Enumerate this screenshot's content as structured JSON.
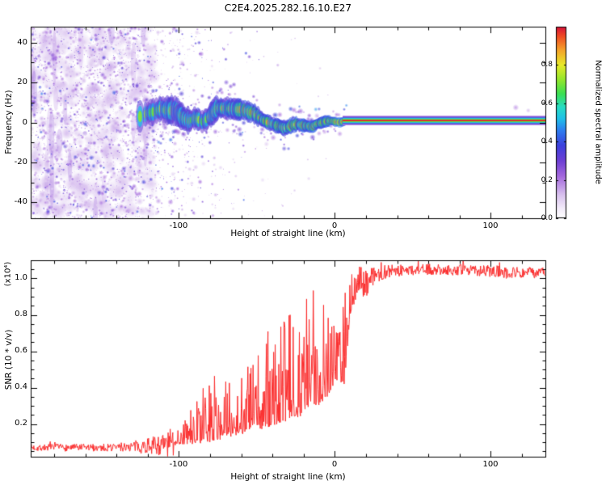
{
  "figure": {
    "title": "C2E4.2025.282.16.10.E27",
    "background": "#ffffff"
  },
  "chart_data": [
    {
      "type": "heatmap",
      "name": "spectral-waterfall",
      "title": "C2E4.2025.282.16.10.E27",
      "xlabel": "Height of straight line (km)",
      "ylabel": "Frequency (Hz)",
      "xlim": [
        -195,
        135
      ],
      "ylim": [
        -48,
        48
      ],
      "xticks": [
        -100,
        0,
        100
      ],
      "xtick_labels": [
        "-100",
        "0",
        "100"
      ],
      "yticks": [
        40,
        20,
        0,
        -20,
        -40
      ],
      "ytick_labels": [
        "40",
        "20",
        "0",
        "-20",
        "-40"
      ],
      "grid": false,
      "colorbar": {
        "label": "Normalized spectral amplitude",
        "range": [
          0,
          1
        ],
        "ticks": [
          0.0,
          0.2,
          0.4,
          0.6,
          0.8
        ],
        "tick_labels": [
          "0.0",
          "0.2",
          "0.4",
          "0.6",
          "0.8"
        ],
        "colormap_stops": [
          [
            0.0,
            "#ffffff"
          ],
          [
            0.05,
            "#f3ecfa"
          ],
          [
            0.12,
            "#d9c2ee"
          ],
          [
            0.22,
            "#a468dd"
          ],
          [
            0.3,
            "#6d3fd4"
          ],
          [
            0.38,
            "#3c40dd"
          ],
          [
            0.46,
            "#2e7ff0"
          ],
          [
            0.52,
            "#1fc0e8"
          ],
          [
            0.58,
            "#27dcc4"
          ],
          [
            0.65,
            "#3cdf52"
          ],
          [
            0.72,
            "#8fe62e"
          ],
          [
            0.8,
            "#e8ea28"
          ],
          [
            0.88,
            "#f5a02a"
          ],
          [
            0.95,
            "#ef4b23"
          ],
          [
            1.0,
            "#d6103a"
          ]
        ]
      },
      "features": {
        "noise_field": {
          "x_range": [
            -195,
            -25
          ],
          "dense_until": -128,
          "amplitude_range": [
            0.05,
            0.45
          ],
          "description": "Diffuse purple speckle noise over all frequencies at low heights, thinning out above -125 km"
        },
        "echo_band": {
          "x_range": [
            -127,
            8
          ],
          "center_freq_hz": 2,
          "halfwidth_hz": [
            7,
            2
          ],
          "amplitude": [
            0.65,
            0.95
          ],
          "description": "Meandering cyan/green echo trace near 0 Hz that narrows and strengthens with height"
        },
        "carrier_line": {
          "x_range": [
            5,
            135
          ],
          "center_freq_hz": 1,
          "halfwidth_hz": 1.9,
          "amplitude": 1.0,
          "description": "Narrow saturated red/green horizontal line near 0 Hz above 5 km"
        }
      }
    },
    {
      "type": "line",
      "name": "snr-profile",
      "xlabel": "Height of straight line (km)",
      "ylabel": "SNR (10 * v/v)",
      "scale_label": "(x10⁴)",
      "xlim": [
        -195,
        135
      ],
      "ylim": [
        0.02,
        1.1
      ],
      "xticks": [
        -100,
        0,
        100
      ],
      "xtick_labels": [
        "-100",
        "0",
        "100"
      ],
      "yticks": [
        0.2,
        0.4,
        0.6,
        0.8,
        1.0
      ],
      "ytick_labels": [
        "0.2",
        "0.4",
        "0.6",
        "0.8",
        "1.0"
      ],
      "line_color": "#fb2e2e",
      "envelope": {
        "x": [
          -195,
          -150,
          -130,
          -110,
          -100,
          -90,
          -80,
          -70,
          -60,
          -50,
          -40,
          -30,
          -20,
          -12,
          -6,
          -2,
          2,
          6,
          10,
          14,
          18,
          25,
          35,
          60,
          90,
          110,
          135
        ],
        "base": [
          0.07,
          0.07,
          0.075,
          0.085,
          0.09,
          0.1,
          0.11,
          0.13,
          0.15,
          0.17,
          0.19,
          0.22,
          0.26,
          0.3,
          0.34,
          0.4,
          0.44,
          0.42,
          0.8,
          0.9,
          0.97,
          1.02,
          1.04,
          1.05,
          1.045,
          1.035,
          1.03
        ],
        "spike": [
          0.02,
          0.02,
          0.03,
          0.06,
          0.12,
          0.22,
          0.38,
          0.3,
          0.42,
          0.45,
          0.55,
          0.6,
          0.65,
          0.72,
          0.72,
          0.66,
          0.63,
          0.62,
          0.27,
          0.17,
          0.1,
          0.05,
          0.035,
          0.03,
          0.03,
          0.035,
          0.03
        ]
      }
    }
  ]
}
